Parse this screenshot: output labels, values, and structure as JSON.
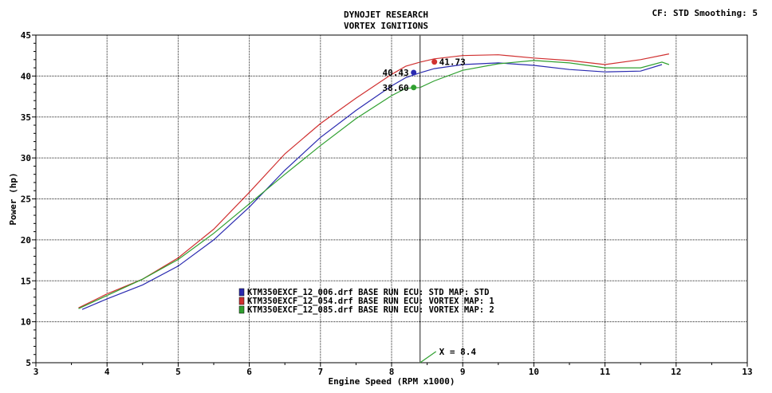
{
  "chart_data": {
    "type": "line",
    "title": "DYNOJET RESEARCH",
    "subtitle": "VORTEX IGNITIONS",
    "info": "CF: STD  Smoothing: 5",
    "xlabel": "Engine Speed (RPM x1000)",
    "ylabel": "Power (hp)",
    "xlim": [
      3,
      13
    ],
    "ylim": [
      5,
      45
    ],
    "xticks": [
      3,
      4,
      5,
      6,
      7,
      8,
      9,
      10,
      11,
      12,
      13
    ],
    "yticks": [
      5,
      10,
      15,
      20,
      25,
      30,
      35,
      40,
      45
    ],
    "grid": true,
    "legend_position": "bottom-left",
    "cursor": {
      "x": 8.4,
      "label": "X = 8.4"
    },
    "series": [
      {
        "name": "KTM350EXCF_12_006.drf BASE RUN ECU: STD MAP: STD",
        "color": "#2a2ab0",
        "marker_label": "40.43",
        "marker_value": 40.43,
        "x": [
          3.65,
          4.0,
          4.5,
          5.0,
          5.5,
          6.0,
          6.5,
          7.0,
          7.5,
          8.0,
          8.2,
          8.4,
          8.6,
          9.0,
          9.5,
          10.0,
          10.5,
          11.0,
          11.5,
          11.8
        ],
        "y": [
          11.5,
          12.8,
          14.5,
          16.8,
          20.0,
          24.0,
          28.5,
          32.5,
          35.8,
          38.8,
          39.8,
          40.4,
          40.9,
          41.4,
          41.6,
          41.3,
          40.8,
          40.5,
          40.6,
          41.4
        ]
      },
      {
        "name": "KTM350EXCF_12_054.drf BASE RUN ECU: VORTEX MAP: 1",
        "color": "#d03030",
        "marker_label": "41.73",
        "marker_value": 41.73,
        "x": [
          3.6,
          4.0,
          4.5,
          5.0,
          5.5,
          6.0,
          6.5,
          7.0,
          7.5,
          8.0,
          8.2,
          8.4,
          8.6,
          9.0,
          9.5,
          10.0,
          10.5,
          11.0,
          11.5,
          11.9
        ],
        "y": [
          11.7,
          13.4,
          15.2,
          17.8,
          21.3,
          25.8,
          30.5,
          34.2,
          37.3,
          40.2,
          41.2,
          41.7,
          42.1,
          42.5,
          42.6,
          42.2,
          41.9,
          41.4,
          42.0,
          42.7
        ]
      },
      {
        "name": "KTM350EXCF_12_085.drf BASE RUN ECU: VORTEX MAP: 2",
        "color": "#30a030",
        "marker_label": "38.60",
        "marker_value": 38.6,
        "x": [
          3.6,
          4.0,
          4.5,
          5.0,
          5.5,
          6.0,
          6.5,
          7.0,
          7.5,
          8.0,
          8.2,
          8.4,
          8.6,
          9.0,
          9.5,
          10.0,
          10.5,
          11.0,
          11.5,
          11.8,
          11.9
        ],
        "y": [
          11.6,
          13.2,
          15.2,
          17.6,
          20.8,
          24.4,
          28.0,
          31.5,
          34.8,
          37.6,
          38.5,
          38.6,
          39.4,
          40.7,
          41.5,
          41.9,
          41.6,
          41.0,
          41.0,
          41.7,
          41.4
        ]
      }
    ]
  }
}
